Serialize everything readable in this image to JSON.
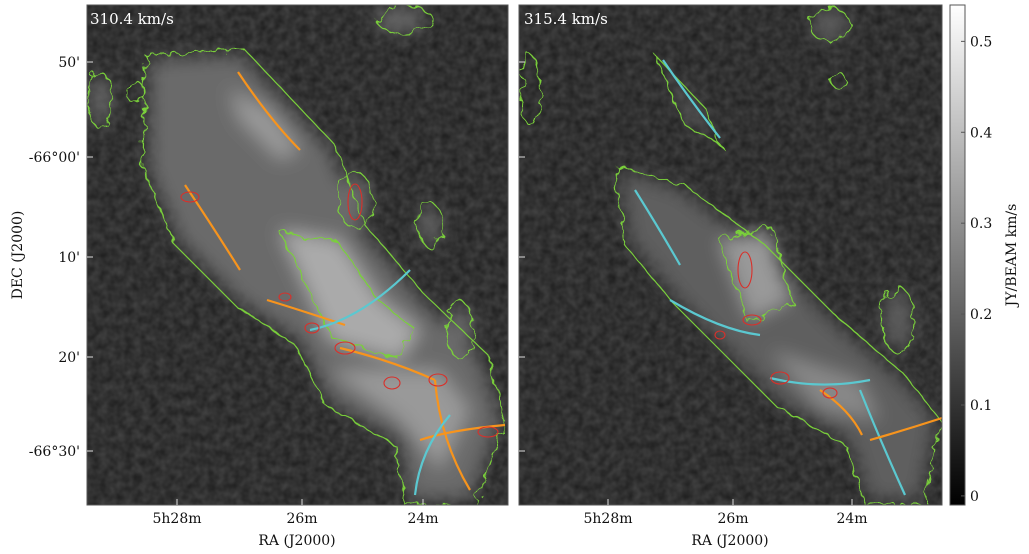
{
  "panels": [
    {
      "label": "310.4 km/s"
    },
    {
      "label": "315.4 km/s"
    }
  ],
  "x_axis": {
    "label": "RA (J2000)",
    "ticks": [
      "5h28m",
      "26m",
      "24m"
    ]
  },
  "y_axis": {
    "label": "DEC (J2000)",
    "ticks": [
      "50'",
      "-66°00'",
      "10'",
      "20'",
      "-66°30'"
    ]
  },
  "colorbar": {
    "label": "JY/BEAM  km/s",
    "lim": [
      -0.01,
      0.54
    ],
    "ticks": [
      0,
      0.1,
      0.2,
      0.3,
      0.4,
      0.5
    ]
  }
}
